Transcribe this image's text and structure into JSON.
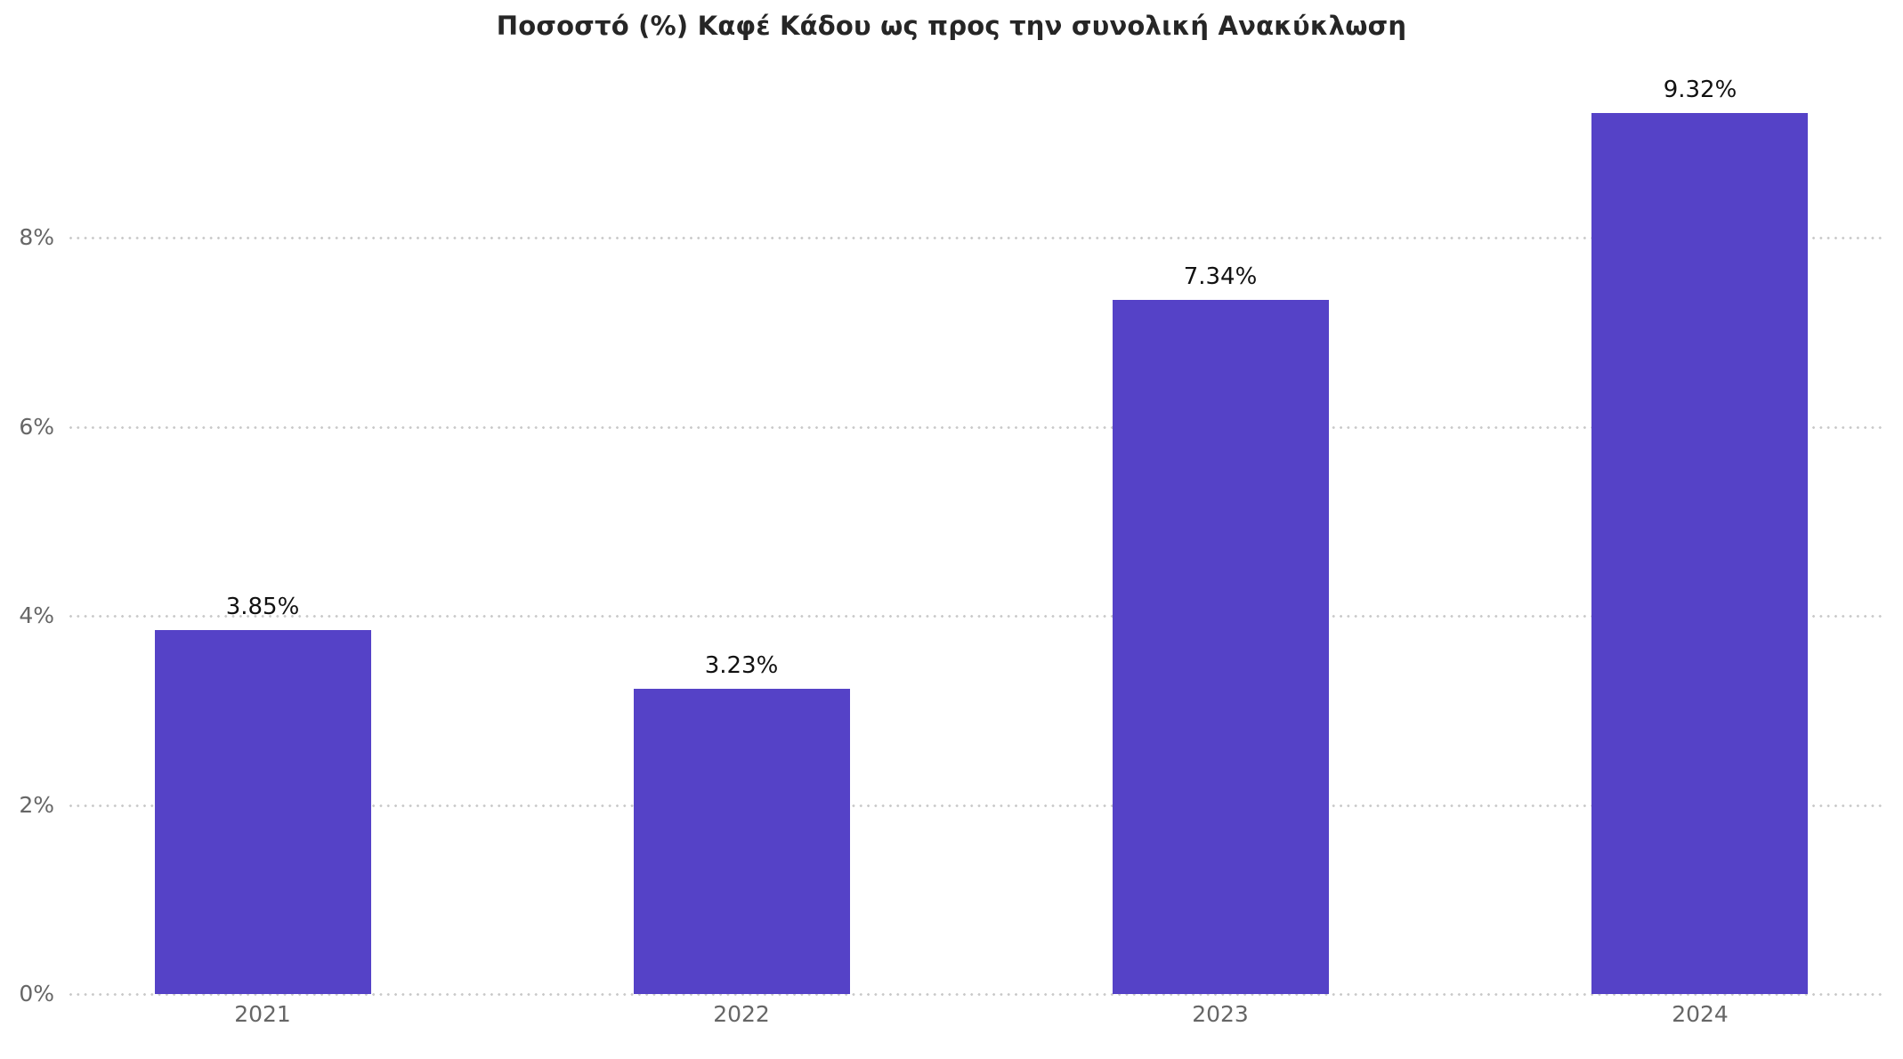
{
  "chart_data": {
    "type": "bar",
    "title": "Ποσοστό (%) Καφέ Κάδου ως προς την συνολική Ανακύκλωση",
    "categories": [
      "2021",
      "2022",
      "2023",
      "2024"
    ],
    "values": [
      3.85,
      3.23,
      7.34,
      9.32
    ],
    "value_labels": [
      "3.85%",
      "3.23%",
      "7.34%",
      "9.32%"
    ],
    "xlabel": "",
    "ylabel": "",
    "ylim": [
      0,
      10.52
    ],
    "ytick_values": [
      0,
      2,
      4,
      6,
      8
    ],
    "ytick_labels": [
      "0%",
      "2%",
      "4%",
      "6%",
      "8%"
    ],
    "grid": "horizontal dotted",
    "legend": "none",
    "colors": {
      "bar": "#5542c7",
      "grid": "#c9c9c9",
      "axis_labels": "#666666",
      "value_labels": "#111111",
      "title": "#262626",
      "background": "#ffffff"
    }
  }
}
